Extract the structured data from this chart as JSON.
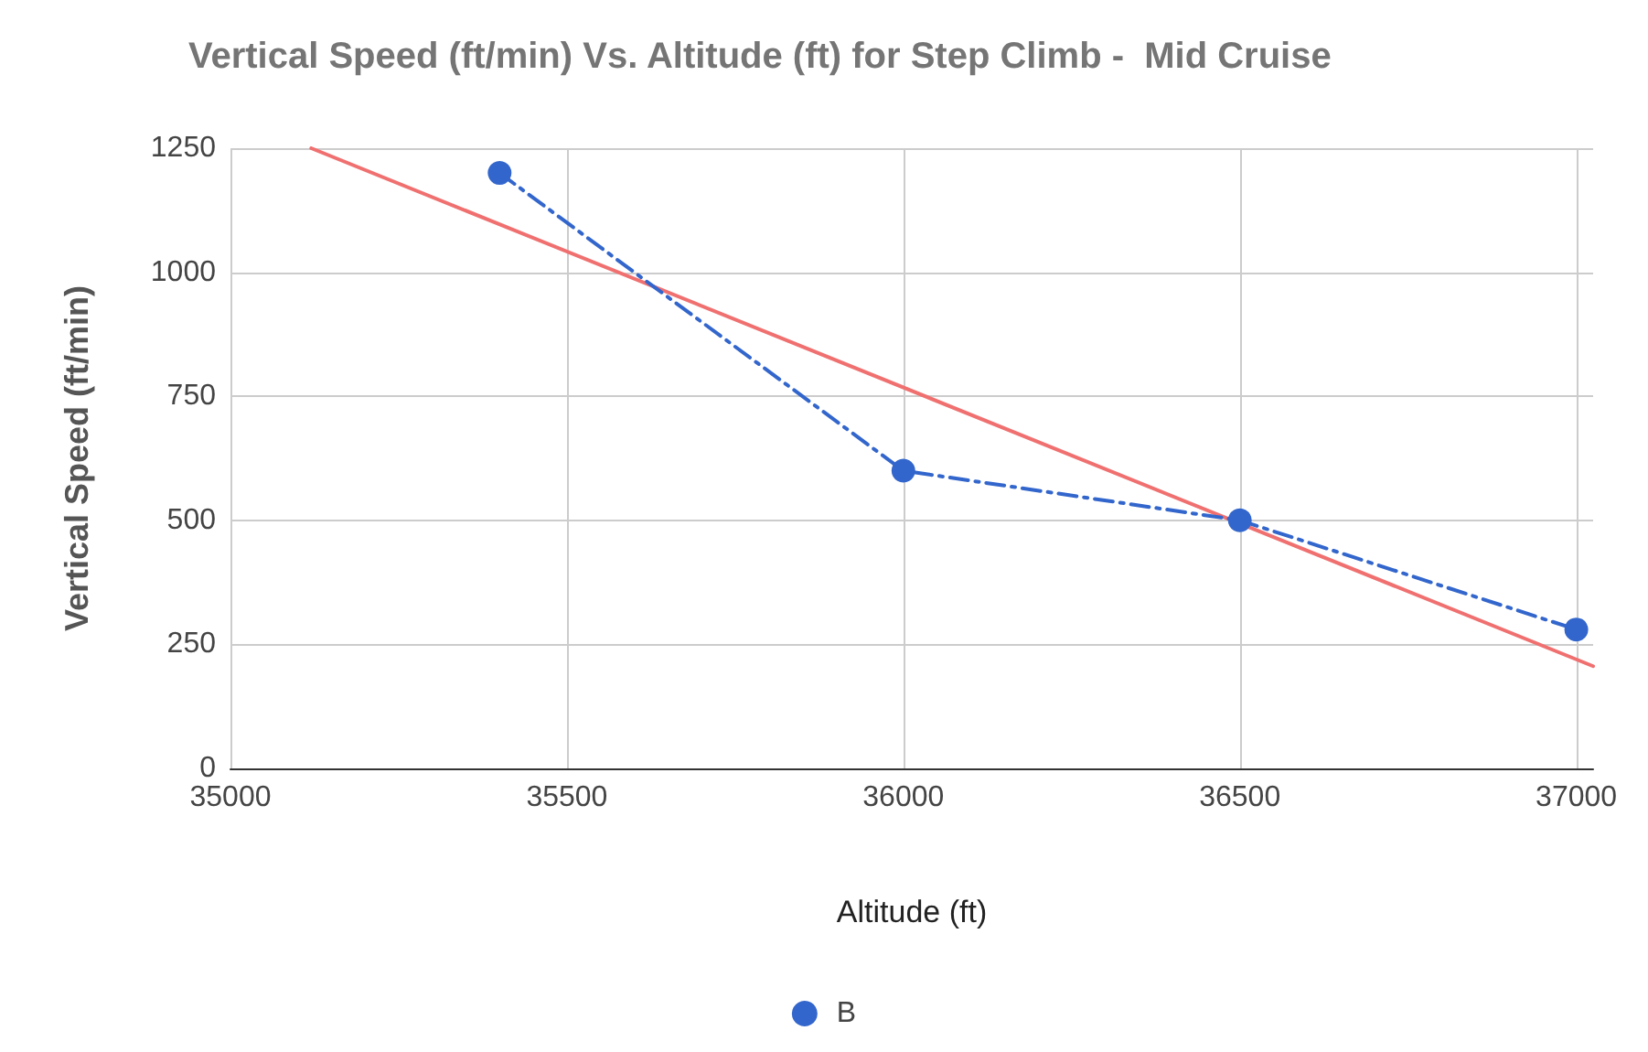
{
  "chart_data": {
    "type": "line",
    "title": "Vertical Speed (ft/min) Vs. Altitude (ft) for Step Climb -  Mid Cruise",
    "xlabel": "Altitude (ft)",
    "ylabel": "Vertical Speed (ft/min)",
    "xlim": [
      35000,
      37025
    ],
    "xticks": [
      35000,
      35500,
      36000,
      36500,
      37000
    ],
    "ylim": [
      0,
      1250
    ],
    "yticks": [
      0,
      250,
      500,
      750,
      1000,
      1250
    ],
    "grid": true,
    "legend": "bottom",
    "series": [
      {
        "name": "B",
        "color": "#3366cc",
        "x": [
          35400,
          36000,
          36500,
          37000
        ],
        "values": [
          1200,
          600,
          500,
          280
        ],
        "marker": "circle",
        "line_style": "dashed"
      },
      {
        "type": "line",
        "color": "#f07070",
        "x": [
          35120,
          37025
        ],
        "values": [
          1250,
          206
        ],
        "marker": "none",
        "line_style": "solid"
      }
    ]
  }
}
